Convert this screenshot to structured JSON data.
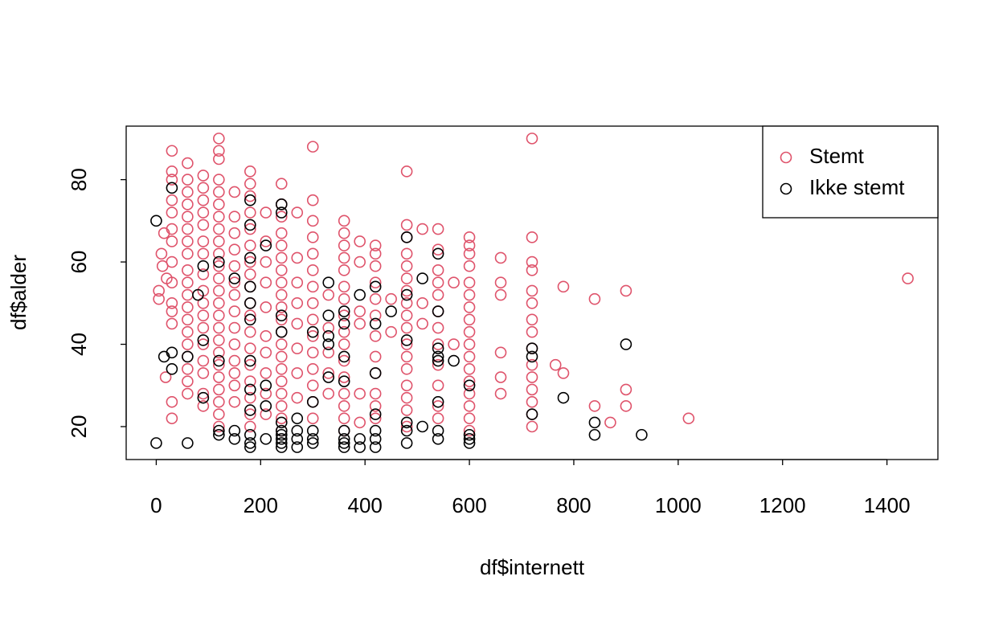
{
  "chart_data": {
    "type": "scatter",
    "xlabel": "df$internett",
    "ylabel": "df$alder",
    "xlim": [
      -57.6,
      1497.6
    ],
    "ylim": [
      12,
      93
    ],
    "xticks": [
      0,
      200,
      400,
      600,
      800,
      1000,
      1200,
      1400
    ],
    "yticks": [
      20,
      40,
      60,
      80
    ],
    "legend": "topright",
    "series": [
      {
        "name": "Stemt",
        "color": "#DF536B",
        "x": [
          5,
          5,
          10,
          15,
          18,
          12,
          20,
          30,
          30,
          30,
          30,
          30,
          30,
          30,
          30,
          30,
          30,
          30,
          30,
          30,
          30,
          60,
          60,
          60,
          60,
          60,
          60,
          60,
          60,
          60,
          60,
          60,
          60,
          60,
          60,
          60,
          60,
          60,
          60,
          60,
          90,
          90,
          90,
          90,
          90,
          90,
          90,
          90,
          90,
          90,
          90,
          90,
          90,
          90,
          90,
          90,
          90,
          120,
          120,
          120,
          120,
          120,
          120,
          120,
          120,
          120,
          120,
          120,
          120,
          120,
          120,
          120,
          120,
          120,
          120,
          120,
          120,
          120,
          120,
          120,
          120,
          150,
          150,
          150,
          150,
          150,
          150,
          150,
          150,
          150,
          150,
          150,
          150,
          150,
          150,
          180,
          180,
          180,
          180,
          180,
          180,
          180,
          180,
          180,
          180,
          180,
          180,
          180,
          180,
          180,
          180,
          180,
          180,
          210,
          210,
          210,
          210,
          210,
          210,
          210,
          210,
          210,
          210,
          240,
          240,
          240,
          240,
          240,
          240,
          240,
          240,
          240,
          240,
          240,
          240,
          240,
          240,
          240,
          240,
          240,
          240,
          240,
          240,
          270,
          270,
          270,
          270,
          270,
          270,
          270,
          270,
          300,
          300,
          300,
          300,
          300,
          300,
          300,
          300,
          300,
          300,
          300,
          300,
          300,
          300,
          300,
          330,
          330,
          330,
          330,
          330,
          360,
          360,
          360,
          360,
          360,
          360,
          360,
          360,
          360,
          360,
          360,
          360,
          360,
          360,
          360,
          360,
          390,
          390,
          390,
          390,
          390,
          390,
          420,
          420,
          420,
          420,
          420,
          420,
          420,
          420,
          420,
          420,
          420,
          420,
          450,
          450,
          480,
          480,
          480,
          480,
          480,
          480,
          480,
          480,
          480,
          480,
          480,
          480,
          480,
          480,
          480,
          480,
          480,
          510,
          510,
          510,
          540,
          540,
          540,
          540,
          540,
          540,
          540,
          540,
          540,
          540,
          540,
          540,
          570,
          570,
          600,
          600,
          600,
          600,
          600,
          600,
          600,
          600,
          600,
          600,
          600,
          600,
          600,
          600,
          600,
          600,
          600,
          660,
          660,
          660,
          660,
          660,
          660,
          720,
          720,
          720,
          720,
          720,
          720,
          720,
          720,
          720,
          720,
          720,
          720,
          720,
          720,
          720,
          765,
          780,
          780,
          840,
          840,
          870,
          900,
          900,
          900,
          1020,
          1440
        ],
        "values": [
          53,
          51,
          62,
          67,
          32,
          59,
          56,
          87,
          82,
          80,
          75,
          72,
          68,
          65,
          60,
          55,
          50,
          48,
          45,
          26,
          22,
          84,
          80,
          77,
          74,
          71,
          68,
          65,
          62,
          58,
          55,
          52,
          49,
          46,
          43,
          40,
          37,
          34,
          31,
          28,
          81,
          78,
          75,
          72,
          69,
          65,
          62,
          57,
          53,
          50,
          47,
          44,
          40,
          36,
          33,
          28,
          25,
          90,
          87,
          85,
          80,
          77,
          74,
          71,
          68,
          65,
          62,
          59,
          56,
          53,
          50,
          47,
          44,
          41,
          38,
          35,
          32,
          29,
          26,
          23,
          20,
          77,
          71,
          67,
          63,
          59,
          55,
          52,
          48,
          44,
          40,
          36,
          33,
          30,
          26,
          82,
          79,
          76,
          72,
          68,
          64,
          60,
          57,
          54,
          50,
          47,
          43,
          39,
          35,
          31,
          27,
          23,
          20,
          72,
          65,
          60,
          55,
          49,
          42,
          38,
          33,
          28,
          23,
          79,
          74,
          71,
          67,
          64,
          61,
          58,
          55,
          52,
          49,
          46,
          43,
          40,
          37,
          34,
          31,
          28,
          25,
          22,
          19,
          72,
          61,
          55,
          50,
          45,
          39,
          33,
          27,
          88,
          75,
          70,
          66,
          62,
          58,
          54,
          50,
          46,
          42,
          38,
          34,
          30,
          26,
          22,
          52,
          44,
          38,
          33,
          28,
          70,
          67,
          64,
          61,
          58,
          54,
          51,
          47,
          43,
          40,
          36,
          32,
          28,
          25,
          22,
          19,
          65,
          60,
          48,
          45,
          28,
          21,
          64,
          62,
          59,
          55,
          51,
          47,
          42,
          37,
          33,
          28,
          25,
          22,
          51,
          43,
          82,
          69,
          66,
          62,
          59,
          56,
          53,
          50,
          47,
          44,
          40,
          37,
          34,
          30,
          27,
          24,
          20,
          68,
          50,
          45,
          68,
          63,
          58,
          55,
          52,
          48,
          44,
          40,
          35,
          30,
          25,
          22,
          55,
          40,
          66,
          64,
          62,
          59,
          55,
          52,
          49,
          46,
          43,
          40,
          37,
          34,
          31,
          28,
          25,
          22,
          19,
          61,
          55,
          52,
          38,
          32,
          28,
          90,
          66,
          60,
          58,
          53,
          50,
          46,
          43,
          39,
          35,
          32,
          29,
          26,
          23,
          20,
          35,
          54,
          33,
          51,
          25,
          21,
          53,
          29,
          25,
          22,
          56
        ]
      },
      {
        "name": "Ikke stemt",
        "color": "#000000",
        "x": [
          0,
          0,
          15,
          30,
          30,
          30,
          60,
          60,
          90,
          80,
          90,
          90,
          120,
          120,
          120,
          120,
          150,
          150,
          150,
          180,
          180,
          180,
          180,
          180,
          180,
          180,
          180,
          180,
          180,
          180,
          180,
          210,
          210,
          210,
          210,
          240,
          240,
          240,
          240,
          240,
          240,
          240,
          240,
          240,
          240,
          270,
          270,
          270,
          270,
          300,
          300,
          300,
          300,
          300,
          330,
          330,
          330,
          330,
          330,
          360,
          360,
          360,
          360,
          360,
          360,
          360,
          360,
          390,
          390,
          390,
          420,
          420,
          420,
          420,
          420,
          420,
          420,
          450,
          480,
          480,
          480,
          480,
          480,
          480,
          510,
          510,
          540,
          540,
          540,
          540,
          540,
          540,
          540,
          540,
          570,
          600,
          600,
          600,
          600,
          720,
          720,
          720,
          780,
          840,
          840,
          900,
          930
        ],
        "values": [
          70,
          16,
          37,
          78,
          38,
          34,
          37,
          16,
          59,
          52,
          41,
          27,
          60,
          36,
          19,
          18,
          56,
          19,
          17,
          75,
          69,
          61,
          54,
          50,
          46,
          36,
          29,
          24,
          18,
          16,
          15,
          64,
          30,
          25,
          17,
          74,
          72,
          47,
          43,
          21,
          19,
          18,
          17,
          16,
          15,
          22,
          19,
          17,
          15,
          43,
          26,
          19,
          17,
          16,
          55,
          47,
          42,
          40,
          32,
          48,
          45,
          37,
          31,
          19,
          17,
          16,
          15,
          52,
          17,
          15,
          54,
          45,
          33,
          23,
          19,
          17,
          15,
          48,
          66,
          52,
          41,
          21,
          19,
          16,
          56,
          20,
          62,
          48,
          39,
          37,
          36,
          26,
          19,
          17,
          36,
          30,
          18,
          17,
          16,
          39,
          37,
          23,
          27,
          21,
          18,
          40,
          18
        ]
      }
    ]
  }
}
